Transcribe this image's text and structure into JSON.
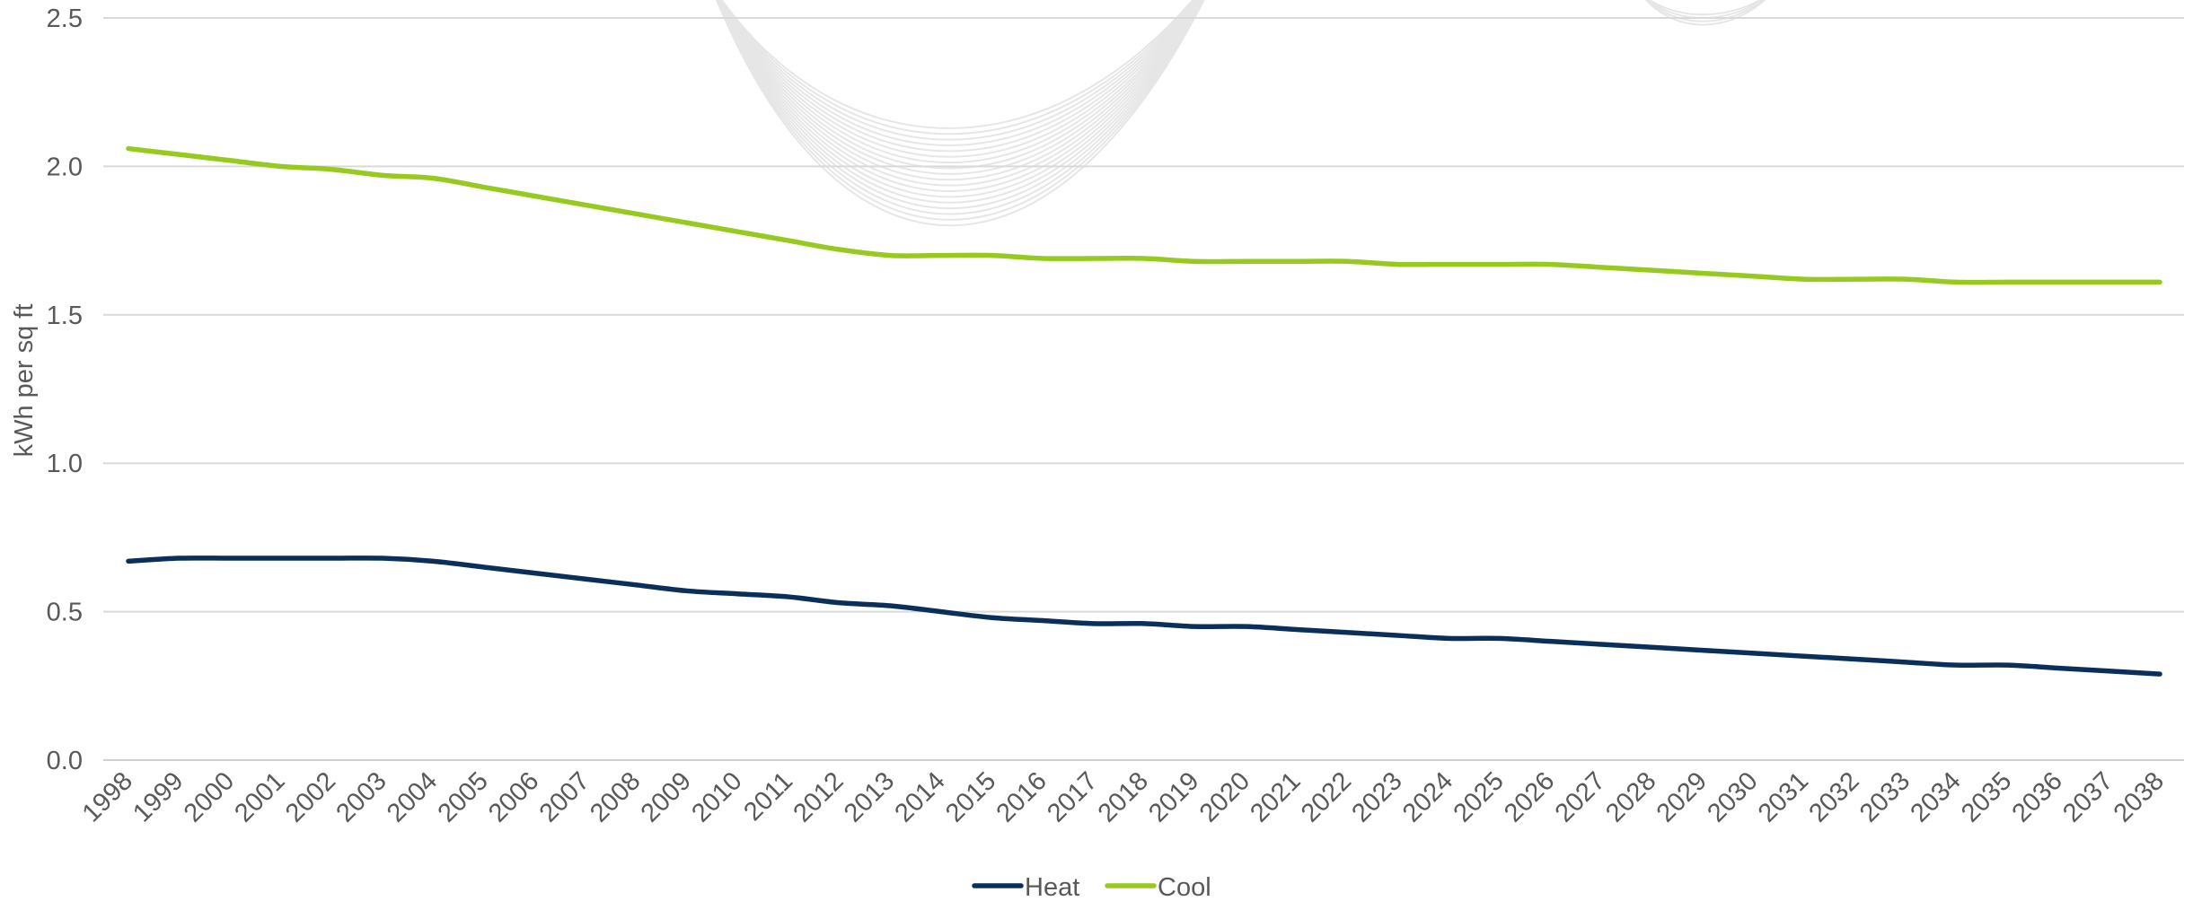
{
  "chart_data": {
    "type": "line",
    "ylabel": "kWh per sq ft",
    "ylim": [
      0,
      2.5
    ],
    "y_ticks": [
      "0.0",
      "0.5",
      "1.0",
      "1.5",
      "2.0",
      "2.5"
    ],
    "grid": true,
    "legend_position": "bottom",
    "categories": [
      "1998",
      "1999",
      "2000",
      "2001",
      "2002",
      "2003",
      "2004",
      "2005",
      "2006",
      "2007",
      "2008",
      "2009",
      "2010",
      "2011",
      "2012",
      "2013",
      "2014",
      "2015",
      "2016",
      "2017",
      "2018",
      "2019",
      "2020",
      "2021",
      "2022",
      "2023",
      "2024",
      "2025",
      "2026",
      "2027",
      "2028",
      "2029",
      "2030",
      "2031",
      "2032",
      "2033",
      "2034",
      "2035",
      "2036",
      "2037",
      "2038"
    ],
    "series": [
      {
        "name": "Heat",
        "color": "#0b2f5b",
        "values": [
          0.67,
          0.68,
          0.68,
          0.68,
          0.68,
          0.68,
          0.67,
          0.65,
          0.63,
          0.61,
          0.59,
          0.57,
          0.56,
          0.55,
          0.53,
          0.52,
          0.5,
          0.48,
          0.47,
          0.46,
          0.46,
          0.45,
          0.45,
          0.44,
          0.43,
          0.42,
          0.41,
          0.41,
          0.4,
          0.39,
          0.38,
          0.37,
          0.36,
          0.35,
          0.34,
          0.33,
          0.32,
          0.32,
          0.31,
          0.3,
          0.29
        ]
      },
      {
        "name": "Cool",
        "color": "#97c91e",
        "values": [
          2.06,
          2.04,
          2.02,
          2.0,
          1.99,
          1.97,
          1.96,
          1.93,
          1.9,
          1.87,
          1.84,
          1.81,
          1.78,
          1.75,
          1.72,
          1.7,
          1.7,
          1.7,
          1.69,
          1.69,
          1.69,
          1.68,
          1.68,
          1.68,
          1.68,
          1.67,
          1.67,
          1.67,
          1.67,
          1.66,
          1.65,
          1.64,
          1.63,
          1.62,
          1.62,
          1.62,
          1.61,
          1.61,
          1.61,
          1.61,
          1.61
        ]
      }
    ]
  }
}
